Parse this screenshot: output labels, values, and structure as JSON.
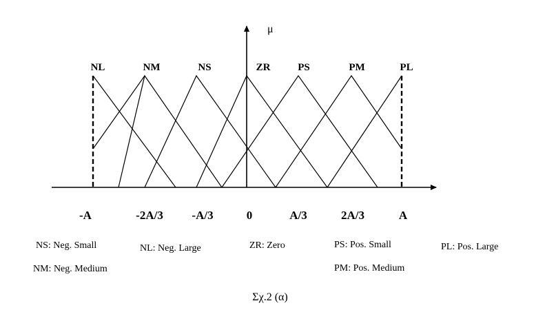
{
  "axis_label": "μ",
  "set_labels": [
    "NL",
    "NM",
    "NS",
    "ZR",
    "PS",
    "PM",
    "PL"
  ],
  "x_ticks": [
    "-A",
    "-2A/3",
    "-A/3",
    "0",
    "A/3",
    "2A/3",
    "A"
  ],
  "legend": {
    "ns": "NS: Neg. Small",
    "nm": "NM: Neg. Medium",
    "nl": "NL: Neg. Large",
    "zr": "ZR: Zero",
    "ps": "PS: Pos. Small",
    "pm": "PM: Pos. Medium",
    "pl": "PL: Pos. Large"
  },
  "caption": "Σχ.2 (α)"
}
